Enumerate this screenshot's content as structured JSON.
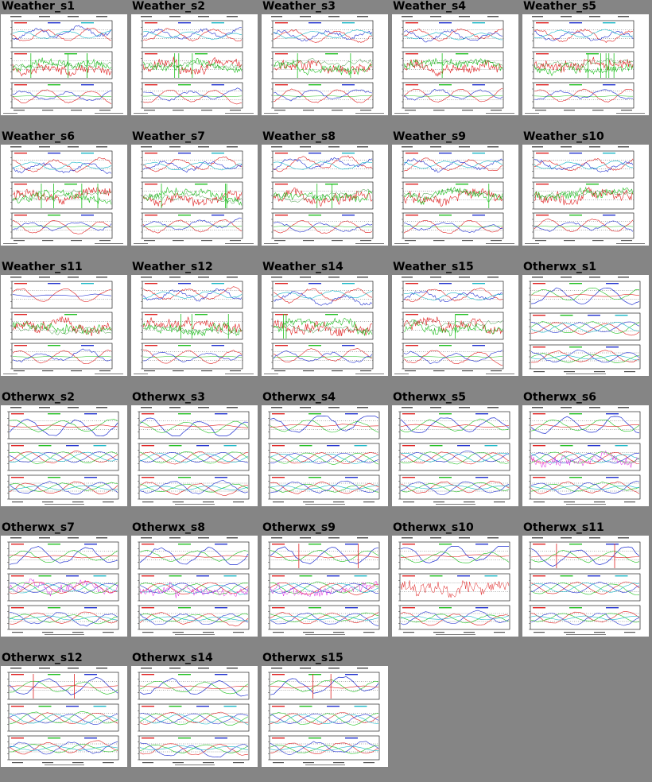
{
  "gallery": {
    "tiles": [
      {
        "title": "Weather_s1",
        "kind": "weather",
        "variant": 1
      },
      {
        "title": "Weather_s2",
        "kind": "weather",
        "variant": 2
      },
      {
        "title": "Weather_s3",
        "kind": "weather",
        "variant": 3
      },
      {
        "title": "Weather_s4",
        "kind": "weather",
        "variant": 4
      },
      {
        "title": "Weather_s5",
        "kind": "weather",
        "variant": 5
      },
      {
        "title": "Weather_s6",
        "kind": "weather",
        "variant": 6
      },
      {
        "title": "Weather_s7",
        "kind": "weather",
        "variant": 7
      },
      {
        "title": "Weather_s8",
        "kind": "weather",
        "variant": 8
      },
      {
        "title": "Weather_s9",
        "kind": "weather",
        "variant": 9
      },
      {
        "title": "Weather_s10",
        "kind": "weather",
        "variant": 10
      },
      {
        "title": "Weather_s11",
        "kind": "weather",
        "variant": 11
      },
      {
        "title": "Weather_s12",
        "kind": "weather",
        "variant": 12
      },
      {
        "title": "Weather_s14",
        "kind": "weather",
        "variant": 13
      },
      {
        "title": "Weather_s15",
        "kind": "weather",
        "variant": 14
      },
      {
        "title": "Otherwx_s1",
        "kind": "otherwx",
        "variant": 1
      },
      {
        "title": "Otherwx_s2",
        "kind": "otherwx",
        "variant": 2
      },
      {
        "title": "Otherwx_s3",
        "kind": "otherwx",
        "variant": 3
      },
      {
        "title": "Otherwx_s4",
        "kind": "otherwx",
        "variant": 4
      },
      {
        "title": "Otherwx_s5",
        "kind": "otherwx",
        "variant": 5
      },
      {
        "title": "Otherwx_s6",
        "kind": "otherwx",
        "variant": 6
      },
      {
        "title": "Otherwx_s7",
        "kind": "otherwx",
        "variant": 7
      },
      {
        "title": "Otherwx_s8",
        "kind": "otherwx",
        "variant": 8
      },
      {
        "title": "Otherwx_s9",
        "kind": "otherwx",
        "variant": 9
      },
      {
        "title": "Otherwx_s10",
        "kind": "otherwx",
        "variant": 10
      },
      {
        "title": "Otherwx_s11",
        "kind": "otherwx",
        "variant": 11
      },
      {
        "title": "Otherwx_s12",
        "kind": "otherwx",
        "variant": 12
      },
      {
        "title": "Otherwx_s14",
        "kind": "otherwx",
        "variant": 13
      },
      {
        "title": "Otherwx_s15",
        "kind": "otherwx",
        "variant": 14
      }
    ],
    "colors": {
      "background": "#858585",
      "red": "#e02020",
      "green": "#1fc01f",
      "blue": "#2030d0",
      "cyan": "#19b8c8",
      "magenta": "#e020e0",
      "dark_green": "#0a7a0a"
    }
  }
}
